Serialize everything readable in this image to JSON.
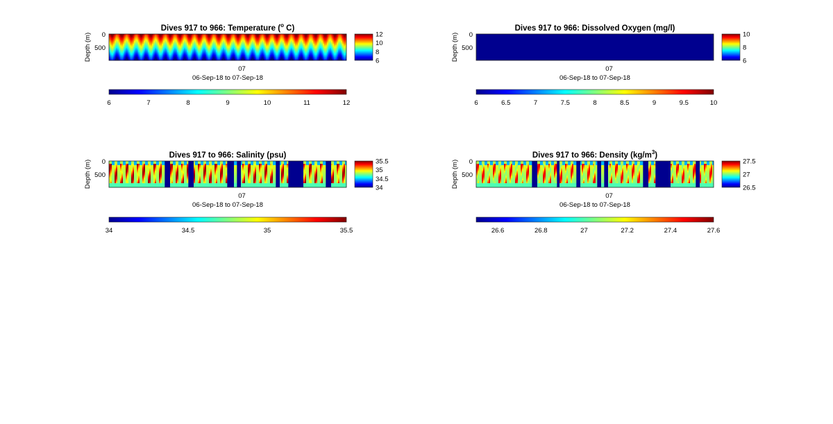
{
  "chart_data": [
    {
      "type": "heatmap",
      "title": "Dives 917 to 966: Temperature (",
      "title_sup": "o",
      "title_end": " C)",
      "ylabel": "Depth (m)",
      "yticks": [
        "0",
        "500"
      ],
      "xticks": [
        "07"
      ],
      "xlabel": "06-Sep-18 to 07-Sep-18",
      "clim": [
        6,
        12
      ],
      "colorbar_ticks": [
        "12",
        "10",
        "8",
        "6"
      ],
      "horizontal_colorbar_ticks": [
        "6",
        "7",
        "8",
        "9",
        "10",
        "11",
        "12"
      ],
      "pattern": "temperature"
    },
    {
      "type": "heatmap",
      "title": "Dives 917 to 966: Dissolved Oxygen (mg/l)",
      "ylabel": "Depth (m)",
      "yticks": [
        "0",
        "500"
      ],
      "xticks": [
        "07"
      ],
      "xlabel": "06-Sep-18 to 07-Sep-18",
      "clim": [
        6,
        10
      ],
      "colorbar_ticks": [
        "10",
        "8",
        "6"
      ],
      "horizontal_colorbar_ticks": [
        "6",
        "6.5",
        "7",
        "7.5",
        "8",
        "8.5",
        "9",
        "9.5",
        "10"
      ],
      "pattern": "uniform-low"
    },
    {
      "type": "heatmap",
      "title": "Dives 917 to 966: Salinity (psu)",
      "ylabel": "Depth (m)",
      "yticks": [
        "0",
        "500"
      ],
      "xticks": [
        "07"
      ],
      "xlabel": "06-Sep-18 to 07-Sep-18",
      "clim": [
        34,
        35.5
      ],
      "colorbar_ticks": [
        "35.5",
        "35",
        "34.5",
        "34"
      ],
      "horizontal_colorbar_ticks": [
        "34",
        "34.5",
        "35",
        "35.5"
      ],
      "pattern": "stripes"
    },
    {
      "type": "heatmap",
      "title": "Dives 917 to 966: Density (kg/m",
      "title_sup": "3",
      "title_end": ")",
      "ylabel": "Depth (m)",
      "yticks": [
        "0",
        "500"
      ],
      "xticks": [
        "07"
      ],
      "xlabel": "06-Sep-18 to 07-Sep-18",
      "clim": [
        26.5,
        27.6
      ],
      "colorbar_ticks": [
        "27.5",
        "27",
        "26.5"
      ],
      "horizontal_colorbar_ticks": [
        "26.6",
        "26.8",
        "27",
        "27.2",
        "27.4",
        "27.6"
      ],
      "pattern": "stripes"
    }
  ]
}
